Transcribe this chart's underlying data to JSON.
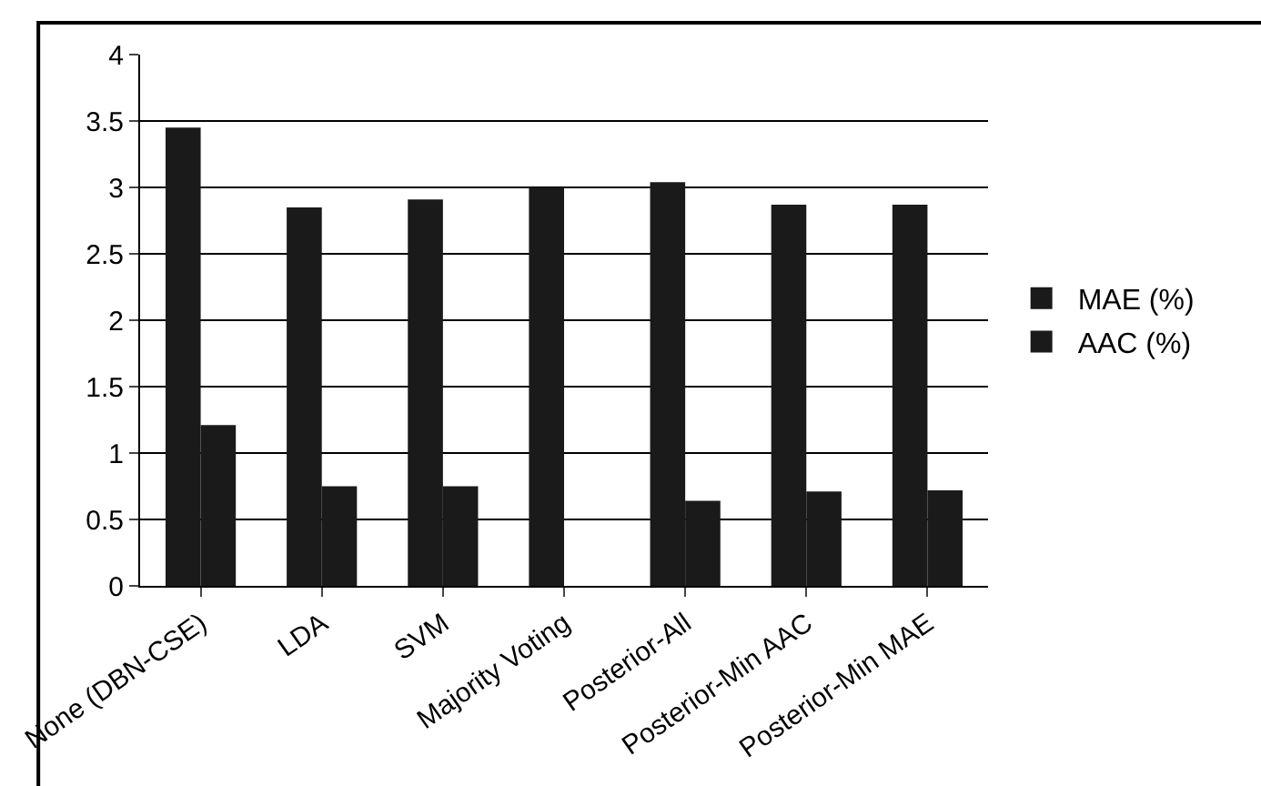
{
  "chart_data": {
    "type": "bar",
    "categories": [
      "None (DBN-CSE)",
      "LDA",
      "SVM",
      "Majority Voting",
      "Posterior-All",
      "Posterior-Min AAC",
      "Posterior-Min MAE"
    ],
    "series": [
      {
        "name": "MAE (%)",
        "color": "#1a1a1a",
        "values": [
          3.45,
          2.85,
          2.91,
          3.0,
          3.04,
          2.87,
          2.87
        ]
      },
      {
        "name": "AAC (%)",
        "color": "#1a1a1a",
        "values": [
          1.21,
          0.75,
          0.75,
          null,
          0.64,
          0.71,
          0.72
        ]
      }
    ],
    "ylim": [
      0,
      4
    ],
    "yticks": [
      0,
      0.5,
      1,
      1.5,
      2,
      2.5,
      3,
      3.5,
      4
    ],
    "grid": "y",
    "legend": "right"
  }
}
